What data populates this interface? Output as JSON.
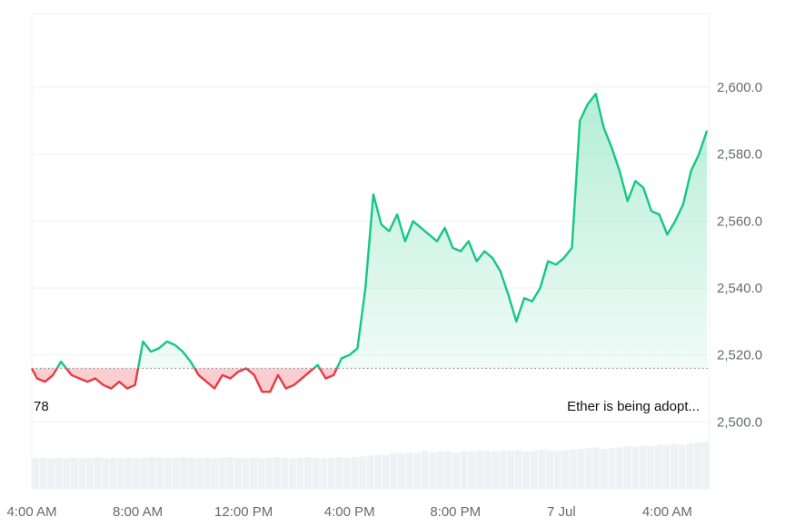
{
  "chart_data": {
    "type": "area",
    "title": "",
    "xlabel": "",
    "ylabel": "",
    "baseline": 2516,
    "ylim": [
      2480,
      2622
    ],
    "y_ticks": [
      2500,
      2520,
      2540,
      2560,
      2580,
      2600
    ],
    "y_tick_labels": [
      "2,500.0",
      "2,520.0",
      "2,540.0",
      "2,560.0",
      "2,580.0",
      "2,600.0"
    ],
    "x_range_hours": [
      0,
      25.6
    ],
    "x_ticks": [
      0,
      4,
      8,
      12,
      16,
      20,
      24
    ],
    "x_tick_labels": [
      "4:00 AM",
      "8:00 AM",
      "12:00 PM",
      "4:00 PM",
      "8:00 PM",
      "7 Jul",
      "4:00 AM"
    ],
    "grid": true,
    "colors": {
      "up": "#16c784",
      "down": "#ea3943",
      "volume": "#eff2f5",
      "grid": "#eff2f5",
      "baseline": "#8a8f98"
    },
    "series": [
      {
        "x": [
          0,
          0.2,
          0.5,
          0.8,
          1.1,
          1.3,
          1.5,
          1.8,
          2.1,
          2.4,
          2.7,
          3.0,
          3.3,
          3.6,
          3.9,
          4.2,
          4.5,
          4.8,
          5.1,
          5.4,
          5.7,
          6.0,
          6.3,
          6.6,
          6.9,
          7.2,
          7.5,
          7.8,
          8.1,
          8.4,
          8.7,
          9.0,
          9.3,
          9.6,
          9.9,
          10.2,
          10.5,
          10.8,
          11.1,
          11.4,
          11.7,
          12.0,
          12.3,
          12.6,
          12.9,
          13.2,
          13.5,
          13.8,
          14.1,
          14.4,
          14.7,
          15.0,
          15.3,
          15.6,
          15.9,
          16.2,
          16.5,
          16.8,
          17.1,
          17.4,
          17.7,
          18.0,
          18.3,
          18.6,
          18.9,
          19.2,
          19.5,
          19.8,
          20.1,
          20.4,
          20.7,
          21.0,
          21.3,
          21.6,
          21.9,
          22.2,
          22.5,
          22.8,
          23.1,
          23.4,
          23.7,
          24.0,
          24.3,
          24.6,
          24.9,
          25.2,
          25.5
        ],
        "y": [
          2516,
          2513,
          2512,
          2514,
          2518,
          2516,
          2514,
          2513,
          2512,
          2513,
          2511,
          2510,
          2512,
          2510,
          2511,
          2524,
          2521,
          2522,
          2524,
          2523,
          2521,
          2518,
          2514,
          2512,
          2510,
          2514,
          2513,
          2515,
          2516,
          2514,
          2509,
          2509,
          2514,
          2510,
          2511,
          2513,
          2515,
          2517,
          2513,
          2514,
          2519,
          2520,
          2522,
          2540,
          2568,
          2559,
          2557,
          2562,
          2554,
          2560,
          2558,
          2556,
          2554,
          2558,
          2552,
          2551,
          2554,
          2548,
          2551,
          2549,
          2545,
          2538,
          2530,
          2537,
          2536,
          2540,
          2548,
          2547,
          2549,
          2552,
          2590,
          2595,
          2598,
          2588,
          2582,
          2575,
          2566,
          2572,
          2570,
          2563,
          2562,
          2556,
          2560,
          2565,
          2575,
          2580,
          2587
        ]
      }
    ],
    "volume": [
      0.44,
      0.45,
      0.44,
      0.45,
      0.44,
      0.45,
      0.44,
      0.45,
      0.46,
      0.44,
      0.45,
      0.44,
      0.45,
      0.44,
      0.45,
      0.46,
      0.45,
      0.44,
      0.45,
      0.46,
      0.45,
      0.44,
      0.45,
      0.44,
      0.45,
      0.46,
      0.45,
      0.44,
      0.45,
      0.44,
      0.45,
      0.46,
      0.45,
      0.44,
      0.45,
      0.46,
      0.45,
      0.44,
      0.45,
      0.46,
      0.45,
      0.46,
      0.47,
      0.48,
      0.5,
      0.49,
      0.52,
      0.51,
      0.53,
      0.52,
      0.55,
      0.53,
      0.54,
      0.55,
      0.53,
      0.55,
      0.54,
      0.56,
      0.55,
      0.54,
      0.56,
      0.55,
      0.56,
      0.54,
      0.55,
      0.57,
      0.56,
      0.55,
      0.56,
      0.57,
      0.58,
      0.59,
      0.6,
      0.58,
      0.59,
      0.6,
      0.62,
      0.61,
      0.63,
      0.62,
      0.64,
      0.63,
      0.65,
      0.64,
      0.66,
      0.67,
      0.68
    ],
    "annotations": [
      {
        "text": "78",
        "position": "left"
      },
      {
        "text": "Ether is being adopt...",
        "position": "right"
      }
    ]
  }
}
